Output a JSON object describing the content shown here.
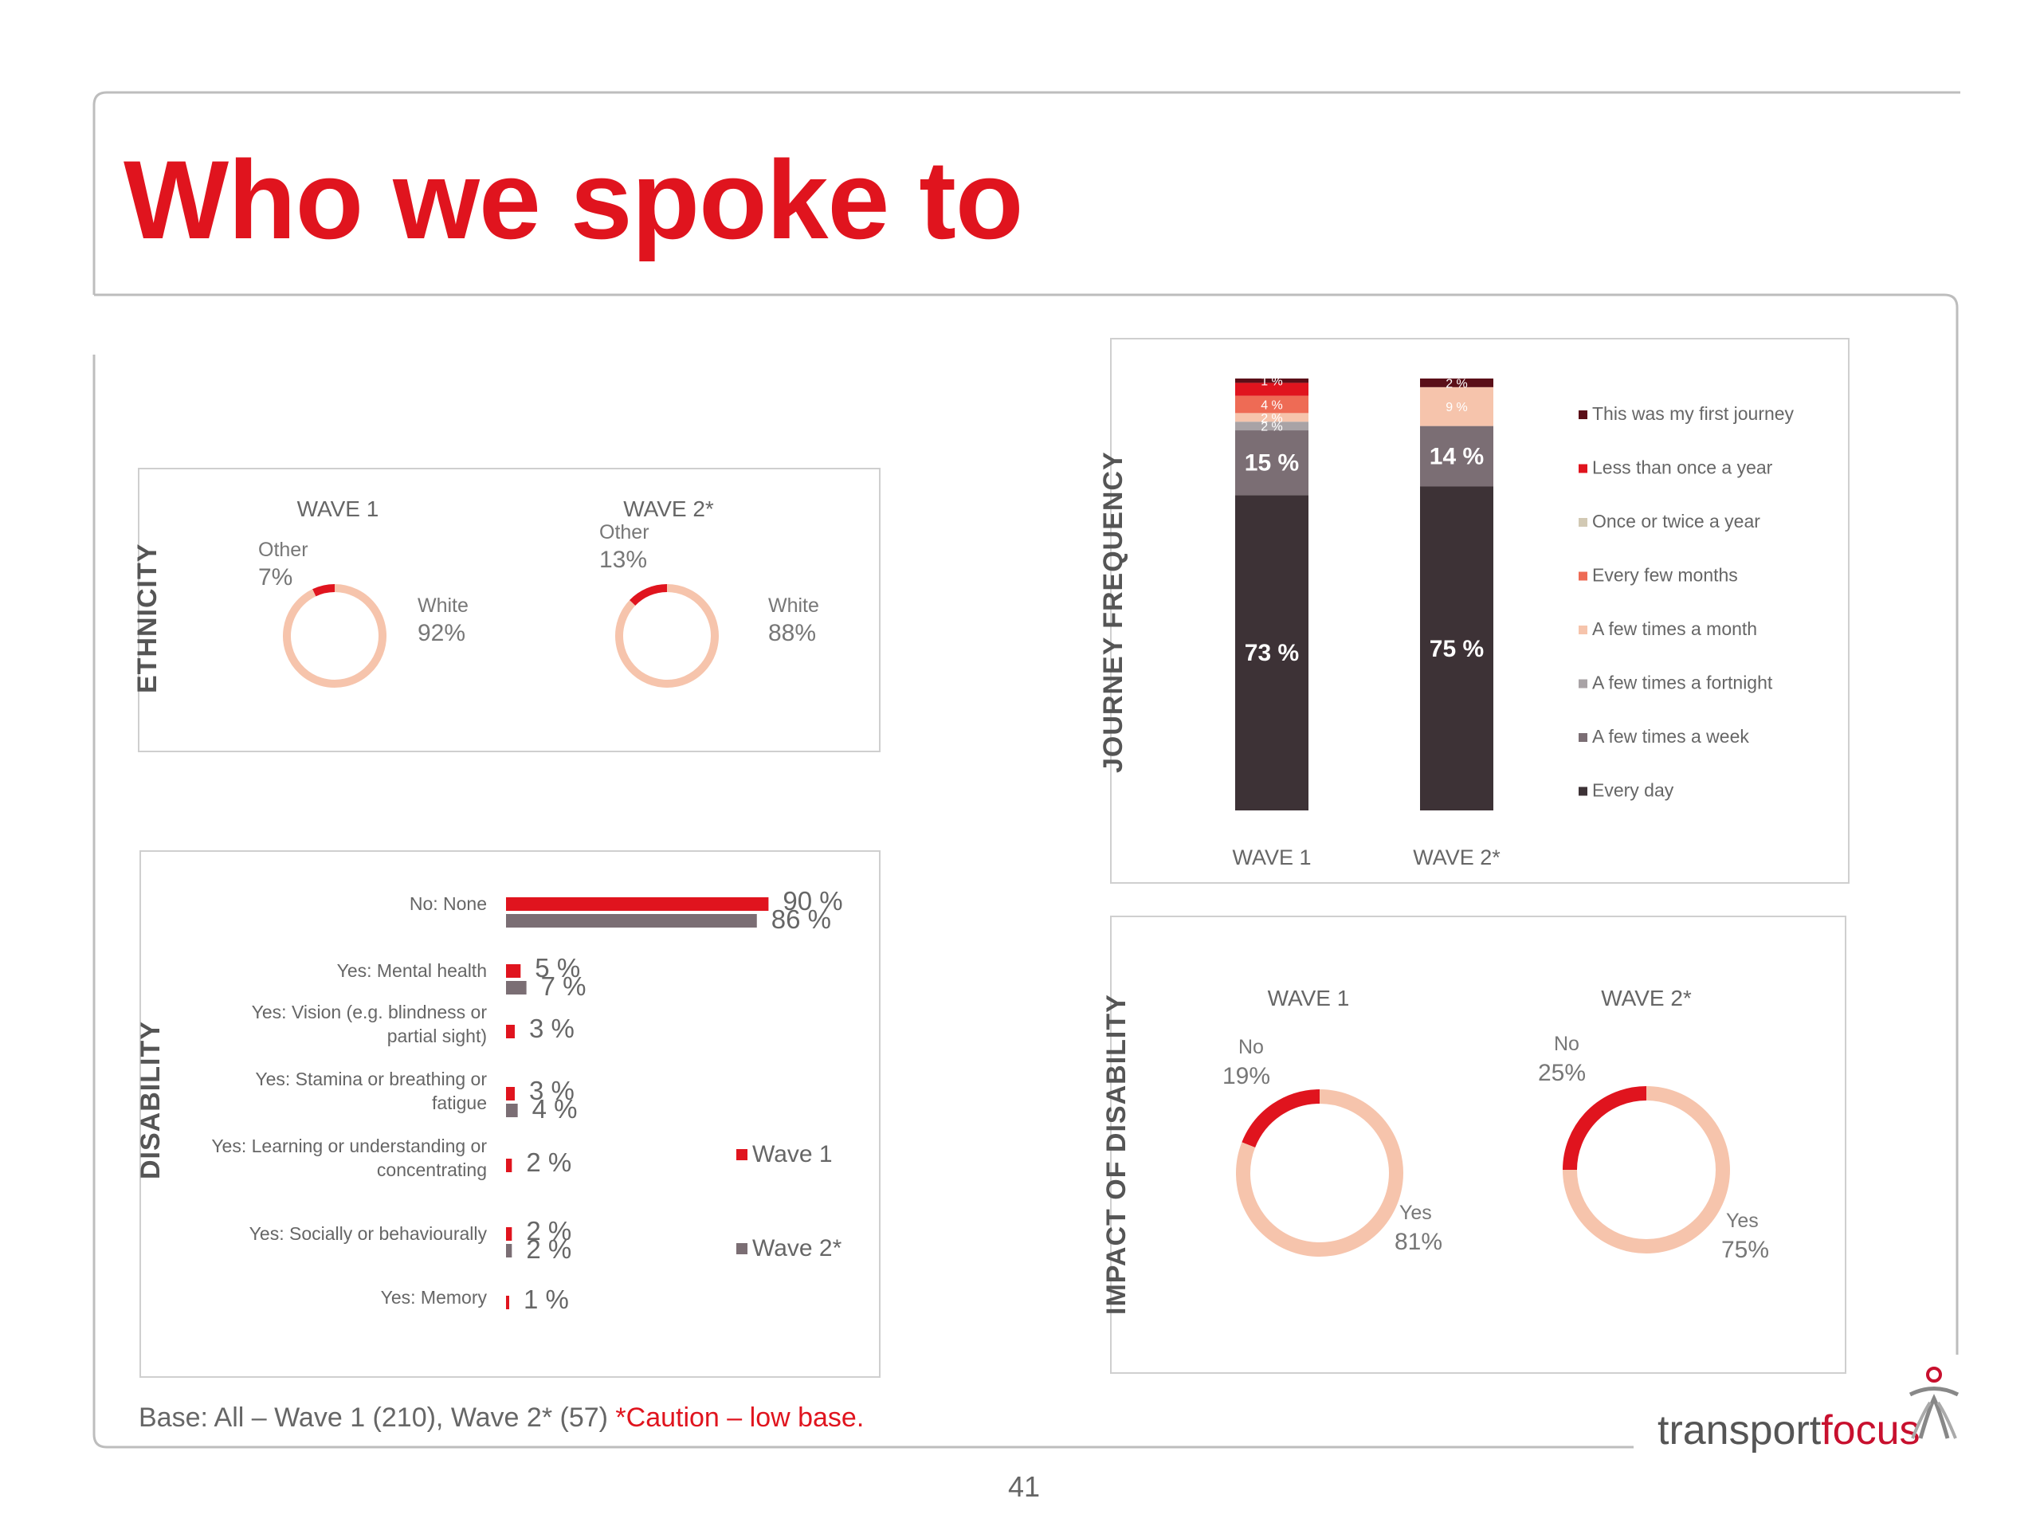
{
  "page": {
    "title": "Who we spoke to",
    "page_number": "41",
    "base_note": "Base: All – Wave 1 (210), Wave 2* (57)",
    "caution_note": "*Caution – low base.",
    "logo": {
      "part1": "transport",
      "part2": "focus"
    }
  },
  "colors": {
    "accent_red": "#e0141e",
    "peach": "#f6c4ac",
    "dark": "#3d3236",
    "grey": "#7b6e74"
  },
  "chart_data": [
    {
      "id": "ethnicity",
      "type": "pie",
      "section_label": "ETHNICITY",
      "charts": [
        {
          "title": "WAVE 1",
          "slices": [
            {
              "label": "Other",
              "pct": "7%",
              "value": 7,
              "color": "#e0141e"
            },
            {
              "label": "White",
              "pct": "92%",
              "value": 92,
              "color": "#f6c4ac"
            }
          ]
        },
        {
          "title": "WAVE 2*",
          "slices": [
            {
              "label": "Other",
              "pct": "13%",
              "value": 13,
              "color": "#e0141e"
            },
            {
              "label": "White",
              "pct": "88%",
              "value": 88,
              "color": "#f6c4ac"
            }
          ]
        }
      ]
    },
    {
      "id": "disability",
      "type": "bar",
      "section_label": "DISABILITY",
      "categories": [
        "No: None",
        "Yes: Mental health",
        "Yes: Vision (e.g. blindness or partial sight)",
        "Yes: Stamina or breathing or fatigue",
        "Yes: Learning or understanding or concentrating",
        "Yes: Socially or behaviourally",
        "Yes: Memory"
      ],
      "category_lines": [
        [
          "No: None"
        ],
        [
          "Yes: Mental health"
        ],
        [
          "Yes: Vision (e.g. blindness or",
          "partial sight)"
        ],
        [
          "Yes: Stamina or breathing or",
          "fatigue"
        ],
        [
          "Yes: Learning or understanding or",
          "concentrating"
        ],
        [
          "Yes: Socially or behaviourally"
        ],
        [
          "Yes: Memory"
        ]
      ],
      "series": [
        {
          "name": "Wave 1",
          "color": "#e0141e",
          "values": [
            90,
            5,
            3,
            3,
            2,
            2,
            1
          ],
          "labels": [
            "90 %",
            "5 %",
            "3 %",
            "3 %",
            "2 %",
            "2 %",
            "1 %"
          ]
        },
        {
          "name": "Wave 2*",
          "color": "#7b6e74",
          "values": [
            86,
            7,
            null,
            4,
            null,
            2,
            null
          ],
          "labels": [
            "86 %",
            "7 %",
            "",
            "4 %",
            "",
            "2 %",
            ""
          ]
        }
      ],
      "legend": [
        "Wave 1",
        "Wave 2*"
      ],
      "legend_position": "right"
    },
    {
      "id": "journey_frequency",
      "type": "bar",
      "stacked": true,
      "section_label": "JOURNEY FREQUENCY",
      "categories": [
        "WAVE 1",
        "WAVE 2*"
      ],
      "series": [
        {
          "name": "Every day",
          "color": "#3d3236",
          "values": [
            73,
            75
          ],
          "labels": [
            "73 %",
            "75 %"
          ]
        },
        {
          "name": "A few times a week",
          "color": "#7b6e74",
          "values": [
            15,
            14
          ],
          "labels": [
            "15 %",
            "14 %"
          ]
        },
        {
          "name": "A few times a fortnight",
          "color": "#a9a3a6",
          "values": [
            2,
            0
          ],
          "labels": [
            "2 %",
            ""
          ]
        },
        {
          "name": "A few times a month",
          "color": "#f6c4ac",
          "values": [
            2,
            9
          ],
          "labels": [
            "2 %",
            "9 %"
          ]
        },
        {
          "name": "Every few months",
          "color": "#ee6b55",
          "values": [
            4,
            0
          ],
          "labels": [
            "4 %",
            ""
          ]
        },
        {
          "name": "Once or twice a year",
          "color": "#d2c9b4",
          "values": [
            0,
            0
          ],
          "labels": [
            "",
            ""
          ]
        },
        {
          "name": "Less than once a year",
          "color": "#e0141e",
          "values": [
            3,
            0
          ],
          "labels": [
            "",
            ""
          ]
        },
        {
          "name": "This was my first journey",
          "color": "#5b0f18",
          "values": [
            1,
            2
          ],
          "labels": [
            "1 %",
            "2 %"
          ]
        }
      ],
      "legend_order": [
        "This was my first journey",
        "Less than once a year",
        "Once or twice a year",
        "Every few months",
        "A few times a month",
        "A few times a fortnight",
        "A few times a week",
        "Every day"
      ],
      "legend_position": "right"
    },
    {
      "id": "impact_of_disability",
      "type": "pie",
      "section_label": "IMPACT OF DISABILITY",
      "charts": [
        {
          "title": "WAVE 1",
          "slices": [
            {
              "label": "No",
              "pct": "19%",
              "value": 19,
              "color": "#e0141e"
            },
            {
              "label": "Yes",
              "pct": "81%",
              "value": 81,
              "color": "#f6c4ac"
            }
          ]
        },
        {
          "title": "WAVE 2*",
          "slices": [
            {
              "label": "No",
              "pct": "25%",
              "value": 25,
              "color": "#e0141e"
            },
            {
              "label": "Yes",
              "pct": "75%",
              "value": 75,
              "color": "#f6c4ac"
            }
          ]
        }
      ]
    }
  ]
}
